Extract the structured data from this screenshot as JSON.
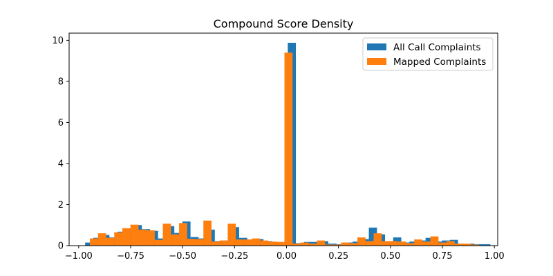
{
  "chart_data": {
    "type": "bar",
    "title": "Compound Score Density",
    "xlabel": "",
    "ylabel": "",
    "xlim": [
      -1.046,
      1.016
    ],
    "ylim": [
      0,
      10.35
    ],
    "xticks": [
      -1.0,
      -0.75,
      -0.5,
      -0.25,
      0.0,
      0.25,
      0.5,
      0.75,
      1.0
    ],
    "xtick_labels": [
      "−1.00",
      "−0.75",
      "−0.50",
      "−0.25",
      "0.00",
      "0.25",
      "0.50",
      "0.75",
      "1.00"
    ],
    "yticks": [
      0,
      2,
      4,
      6,
      8,
      10
    ],
    "ytick_labels": [
      "0",
      "2",
      "4",
      "6",
      "8",
      "10"
    ],
    "grid": false,
    "legend_position": "top-right",
    "series": [
      {
        "name": "All Call Complaints",
        "color": "#1f77b4",
        "bins": [
          [
            -0.969,
            -0.93,
            0.15
          ],
          [
            -0.93,
            -0.891,
            0.38
          ],
          [
            -0.891,
            -0.852,
            0.52
          ],
          [
            -0.852,
            -0.813,
            0.4
          ],
          [
            -0.813,
            -0.774,
            0.68
          ],
          [
            -0.774,
            -0.735,
            0.82
          ],
          [
            -0.735,
            -0.696,
            1.0
          ],
          [
            -0.696,
            -0.657,
            0.8
          ],
          [
            -0.657,
            -0.618,
            0.72
          ],
          [
            -0.618,
            -0.579,
            0.35
          ],
          [
            -0.579,
            -0.54,
            0.95
          ],
          [
            -0.54,
            -0.501,
            0.62
          ],
          [
            -0.501,
            -0.462,
            1.18
          ],
          [
            -0.462,
            -0.423,
            0.42
          ],
          [
            -0.423,
            -0.384,
            0.35
          ],
          [
            -0.384,
            -0.345,
            0.78
          ],
          [
            -0.345,
            -0.306,
            0.22
          ],
          [
            -0.306,
            -0.267,
            0.25
          ],
          [
            -0.267,
            -0.228,
            0.9
          ],
          [
            -0.228,
            -0.189,
            0.38
          ],
          [
            -0.189,
            -0.15,
            0.3
          ],
          [
            -0.15,
            -0.111,
            0.32
          ],
          [
            -0.111,
            -0.072,
            0.22
          ],
          [
            -0.072,
            -0.033,
            0.18
          ],
          [
            -0.033,
            0.006,
            0.17
          ],
          [
            0.006,
            0.045,
            9.88
          ],
          [
            0.045,
            0.084,
            0.12
          ],
          [
            0.084,
            0.123,
            0.18
          ],
          [
            0.123,
            0.162,
            0.18
          ],
          [
            0.162,
            0.201,
            0.22
          ],
          [
            0.201,
            0.24,
            0.1
          ],
          [
            0.24,
            0.279,
            0.07
          ],
          [
            0.279,
            0.318,
            0.15
          ],
          [
            0.318,
            0.357,
            0.2
          ],
          [
            0.357,
            0.396,
            0.32
          ],
          [
            0.396,
            0.435,
            0.88
          ],
          [
            0.435,
            0.474,
            0.55
          ],
          [
            0.474,
            0.513,
            0.2
          ],
          [
            0.513,
            0.552,
            0.4
          ],
          [
            0.552,
            0.591,
            0.15
          ],
          [
            0.591,
            0.63,
            0.2
          ],
          [
            0.63,
            0.669,
            0.25
          ],
          [
            0.669,
            0.708,
            0.38
          ],
          [
            0.708,
            0.747,
            0.2
          ],
          [
            0.747,
            0.786,
            0.25
          ],
          [
            0.786,
            0.825,
            0.28
          ],
          [
            0.825,
            0.864,
            0.1
          ],
          [
            0.864,
            0.903,
            0.1
          ],
          [
            0.903,
            0.942,
            0.07
          ],
          [
            0.942,
            0.981,
            0.07
          ]
        ]
      },
      {
        "name": "Mapped Complaints",
        "color": "#ff7f0e",
        "bins": [
          [
            -0.946,
            -0.907,
            0.35
          ],
          [
            -0.907,
            -0.868,
            0.6
          ],
          [
            -0.868,
            -0.829,
            0.38
          ],
          [
            -0.829,
            -0.79,
            0.65
          ],
          [
            -0.79,
            -0.751,
            0.85
          ],
          [
            -0.751,
            -0.712,
            1.02
          ],
          [
            -0.712,
            -0.673,
            0.78
          ],
          [
            -0.673,
            -0.634,
            0.75
          ],
          [
            -0.634,
            -0.595,
            0.28
          ],
          [
            -0.595,
            -0.556,
            1.07
          ],
          [
            -0.556,
            -0.517,
            0.55
          ],
          [
            -0.517,
            -0.478,
            1.1
          ],
          [
            -0.478,
            -0.439,
            0.33
          ],
          [
            -0.439,
            -0.4,
            0.32
          ],
          [
            -0.4,
            -0.361,
            1.22
          ],
          [
            -0.361,
            -0.322,
            0.2
          ],
          [
            -0.322,
            -0.283,
            0.25
          ],
          [
            -0.283,
            -0.244,
            1.07
          ],
          [
            -0.244,
            -0.205,
            0.3
          ],
          [
            -0.205,
            -0.166,
            0.3
          ],
          [
            -0.166,
            -0.127,
            0.35
          ],
          [
            -0.127,
            -0.088,
            0.25
          ],
          [
            -0.088,
            -0.049,
            0.2
          ],
          [
            -0.049,
            -0.01,
            0.18
          ],
          [
            -0.01,
            0.029,
            0.18
          ],
          [
            -0.01,
            0.029,
            9.4
          ],
          [
            0.029,
            0.068,
            0.1
          ],
          [
            0.068,
            0.107,
            0.15
          ],
          [
            0.107,
            0.146,
            0.1
          ],
          [
            0.146,
            0.185,
            0.25
          ],
          [
            0.185,
            0.224,
            0.05
          ],
          [
            0.224,
            0.263,
            0.05
          ],
          [
            0.263,
            0.302,
            0.15
          ],
          [
            0.302,
            0.341,
            0.12
          ],
          [
            0.341,
            0.38,
            0.4
          ],
          [
            0.38,
            0.419,
            0.22
          ],
          [
            0.419,
            0.458,
            0.6
          ],
          [
            0.458,
            0.497,
            0.22
          ],
          [
            0.497,
            0.536,
            0.22
          ],
          [
            0.536,
            0.575,
            0.2
          ],
          [
            0.575,
            0.614,
            0.12
          ],
          [
            0.614,
            0.653,
            0.3
          ],
          [
            0.653,
            0.692,
            0.2
          ],
          [
            0.692,
            0.731,
            0.45
          ],
          [
            0.731,
            0.77,
            0.15
          ],
          [
            0.77,
            0.809,
            0.22
          ],
          [
            0.809,
            0.848,
            0.1
          ],
          [
            0.848,
            0.887,
            0.1
          ],
          [
            0.887,
            0.926,
            0.05
          ]
        ]
      }
    ]
  }
}
